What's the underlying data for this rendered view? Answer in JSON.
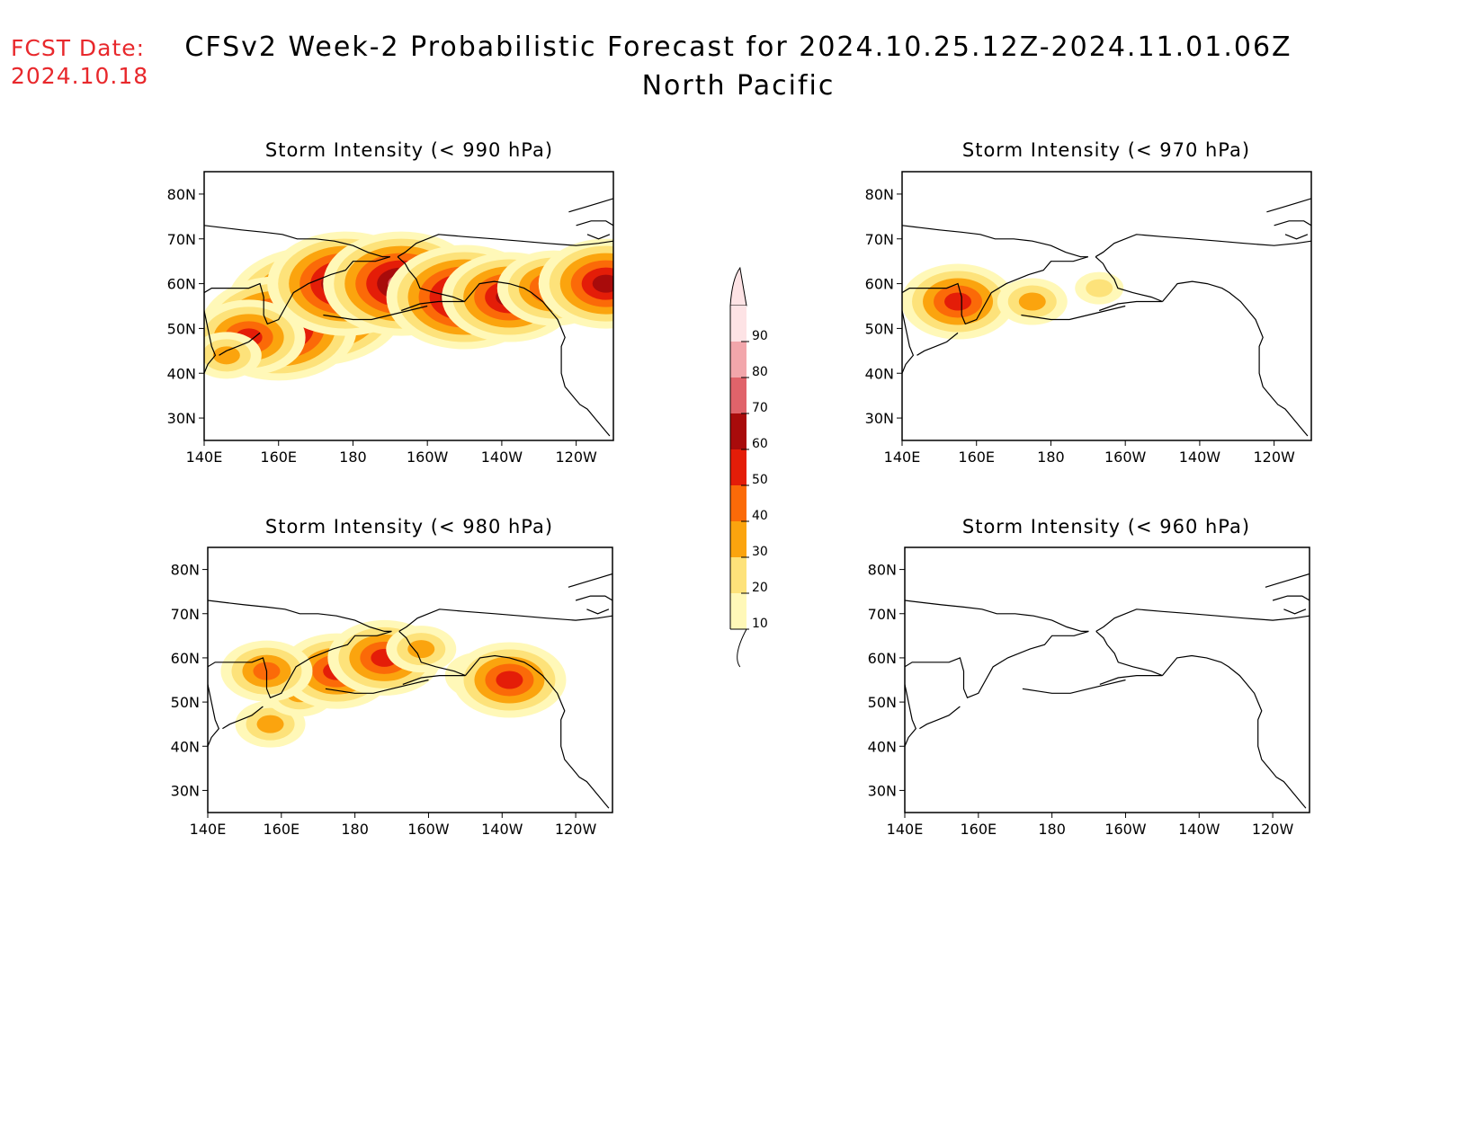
{
  "header": {
    "fcst_label": "FCST Date:",
    "fcst_date": "2024.10.18",
    "fcst_color": "#e8282c",
    "title": "CFSv2 Week-2 Probabilistic Forecast for 2024.10.25.12Z-2024.11.01.06Z",
    "subtitle": "North Pacific"
  },
  "axes": {
    "x_ticks": [
      "140E",
      "160E",
      "180",
      "160W",
      "140W",
      "120W"
    ],
    "y_ticks": [
      "80N",
      "70N",
      "60N",
      "50N",
      "40N",
      "30N"
    ]
  },
  "colorbar": {
    "levels": [
      "10",
      "20",
      "30",
      "40",
      "50",
      "60",
      "70",
      "80",
      "90"
    ],
    "colors": [
      "#fff8b8",
      "#fde27a",
      "#fba40e",
      "#fb6a08",
      "#e41d08",
      "#a80b0b",
      "#e0636a",
      "#f2a6ab",
      "#fde3e5"
    ]
  },
  "panels": [
    {
      "title": "Storm Intensity (< 990 hPa)",
      "blobs": [
        {
          "lon": 170,
          "lat": 55,
          "level": 7
        },
        {
          "lon": 160,
          "lat": 50,
          "level": 6
        },
        {
          "lon": 152,
          "lat": 48,
          "level": 4
        },
        {
          "lon": 146,
          "lat": 44,
          "level": 2
        },
        {
          "lon": 178,
          "lat": 60,
          "level": 6
        },
        {
          "lon": 193,
          "lat": 60,
          "level": 6
        },
        {
          "lon": 210,
          "lat": 57,
          "level": 6
        },
        {
          "lon": 222,
          "lat": 57,
          "level": 5
        },
        {
          "lon": 234,
          "lat": 59,
          "level": 4
        },
        {
          "lon": 248,
          "lat": 60,
          "level": 5
        }
      ]
    },
    {
      "title": "Storm Intensity (< 970 hPa)",
      "blobs": [
        {
          "lon": 155,
          "lat": 56,
          "level": 4
        },
        {
          "lon": 175,
          "lat": 56,
          "level": 2
        },
        {
          "lon": 193,
          "lat": 59,
          "level": 1
        }
      ]
    },
    {
      "title": "Storm Intensity (< 980 hPa)",
      "blobs": [
        {
          "lon": 157,
          "lat": 45,
          "level": 2
        },
        {
          "lon": 165,
          "lat": 52,
          "level": 2
        },
        {
          "lon": 175,
          "lat": 57,
          "level": 4
        },
        {
          "lon": 188,
          "lat": 60,
          "level": 4
        },
        {
          "lon": 198,
          "lat": 62,
          "level": 2
        },
        {
          "lon": 214,
          "lat": 56,
          "level": 2
        },
        {
          "lon": 222,
          "lat": 55,
          "level": 4
        },
        {
          "lon": 156,
          "lat": 57,
          "level": 3
        }
      ]
    },
    {
      "title": "Storm Intensity (< 960 hPa)",
      "blobs": []
    }
  ]
}
